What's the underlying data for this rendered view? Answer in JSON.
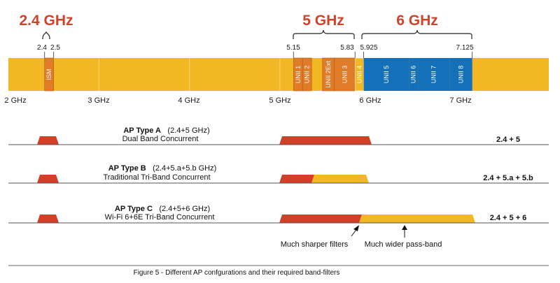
{
  "colors": {
    "spectrum": "#f2b824",
    "grid": "#f6d37a",
    "sub_band": "#e07b28",
    "sub_band_edge": "#b35a12",
    "six_ghz": "#1470b8",
    "filter_red": "#d33f26",
    "filter_yellow": "#f2b824",
    "title_red": "#d0432b"
  },
  "spectrum": {
    "band_titles": [
      "2.4 GHz",
      "5 GHz",
      "6 GHz"
    ],
    "freq_ticks": [
      "2.4",
      "2.5",
      "5.15",
      "5.83",
      "5.925",
      "7.125"
    ],
    "axis_labels": [
      "2 GHz",
      "3 GHz",
      "4 GHz",
      "5 GHz",
      "6 GHz",
      "7 GHz"
    ],
    "blocks": [
      {
        "label": "ISM",
        "from": 2.4,
        "to": 2.5,
        "kind": "sub"
      },
      {
        "label": "UNII 1",
        "from": 5.15,
        "to": 5.25,
        "kind": "sub"
      },
      {
        "label": "UNII 2",
        "from": 5.25,
        "to": 5.35,
        "kind": "sub"
      },
      {
        "label": "UNII 2Ext",
        "from": 5.47,
        "to": 5.6,
        "kind": "sub"
      },
      {
        "label": "UNII 3",
        "from": 5.6,
        "to": 5.83,
        "kind": "sub"
      },
      {
        "label": "UNII 4",
        "from": 5.83,
        "to": 5.925,
        "kind": "yellow"
      },
      {
        "label": "UNII 5",
        "from": 5.925,
        "to": 6.425,
        "kind": "blue"
      },
      {
        "label": "UNII 6",
        "from": 6.425,
        "to": 6.525,
        "kind": "blue"
      },
      {
        "label": "UNII 7",
        "from": 6.525,
        "to": 6.875,
        "kind": "blue"
      },
      {
        "label": "UNII 8",
        "from": 6.875,
        "to": 7.125,
        "kind": "blue"
      }
    ]
  },
  "ap_types": [
    {
      "name": "AP Type A",
      "range": "(2.4+5 GHz)",
      "desc": "Dual Band Concurrent",
      "result": "2.4 + 5"
    },
    {
      "name": "AP Type B",
      "range": "(2.4+5.a+5.b GHz)",
      "desc": "Traditional Tri-Band Concurrent",
      "result": "2.4 + 5.a + 5.b"
    },
    {
      "name": "AP Type C",
      "range": "(2.4+5+6 GHz)",
      "desc": "Wi-Fi 6+6E Tri-Band Concurrent",
      "result": "2.4 + 5 + 6"
    }
  ],
  "notes": {
    "sharper": "Much sharper filters",
    "wider": "Much wider pass-band"
  },
  "caption": "Figure 5 - Different AP confgurations and their required band-filters"
}
